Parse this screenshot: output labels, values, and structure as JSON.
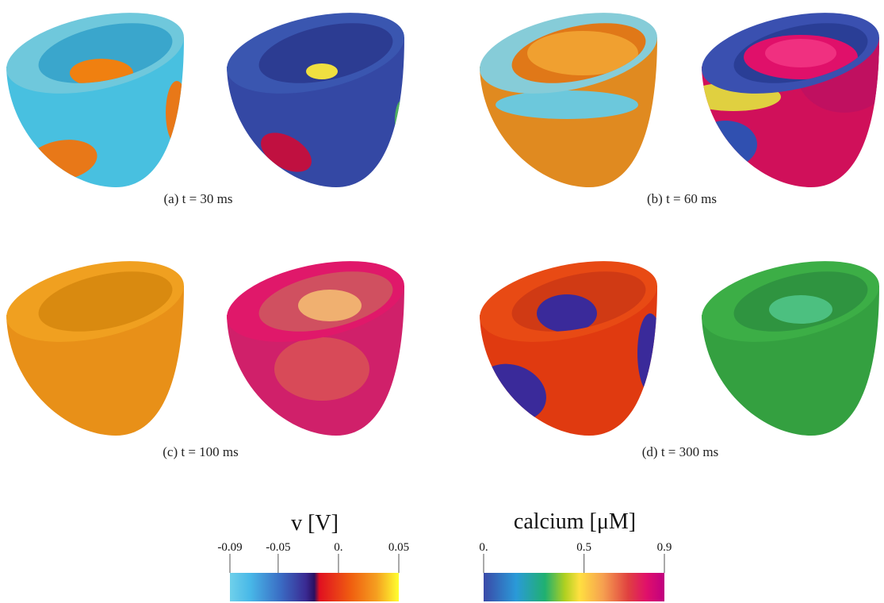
{
  "panels": [
    {
      "caption": "(a) t = 30 ms"
    },
    {
      "caption": "(b) t = 60 ms"
    },
    {
      "caption": "(c) t = 100 ms"
    },
    {
      "caption": "(d) t = 300 ms"
    }
  ],
  "colorbars": [
    {
      "title": "v [V]",
      "lim": [
        -0.09,
        0.05
      ],
      "ticks": [
        -0.09,
        -0.05,
        {
          "value": 0,
          "label": "0."
        },
        0.05
      ]
    },
    {
      "title": "calcium [μM]",
      "lim": [
        0,
        0.9
      ],
      "ticks": [
        {
          "value": 0,
          "label": "0."
        },
        0.5,
        0.9
      ]
    }
  ]
}
